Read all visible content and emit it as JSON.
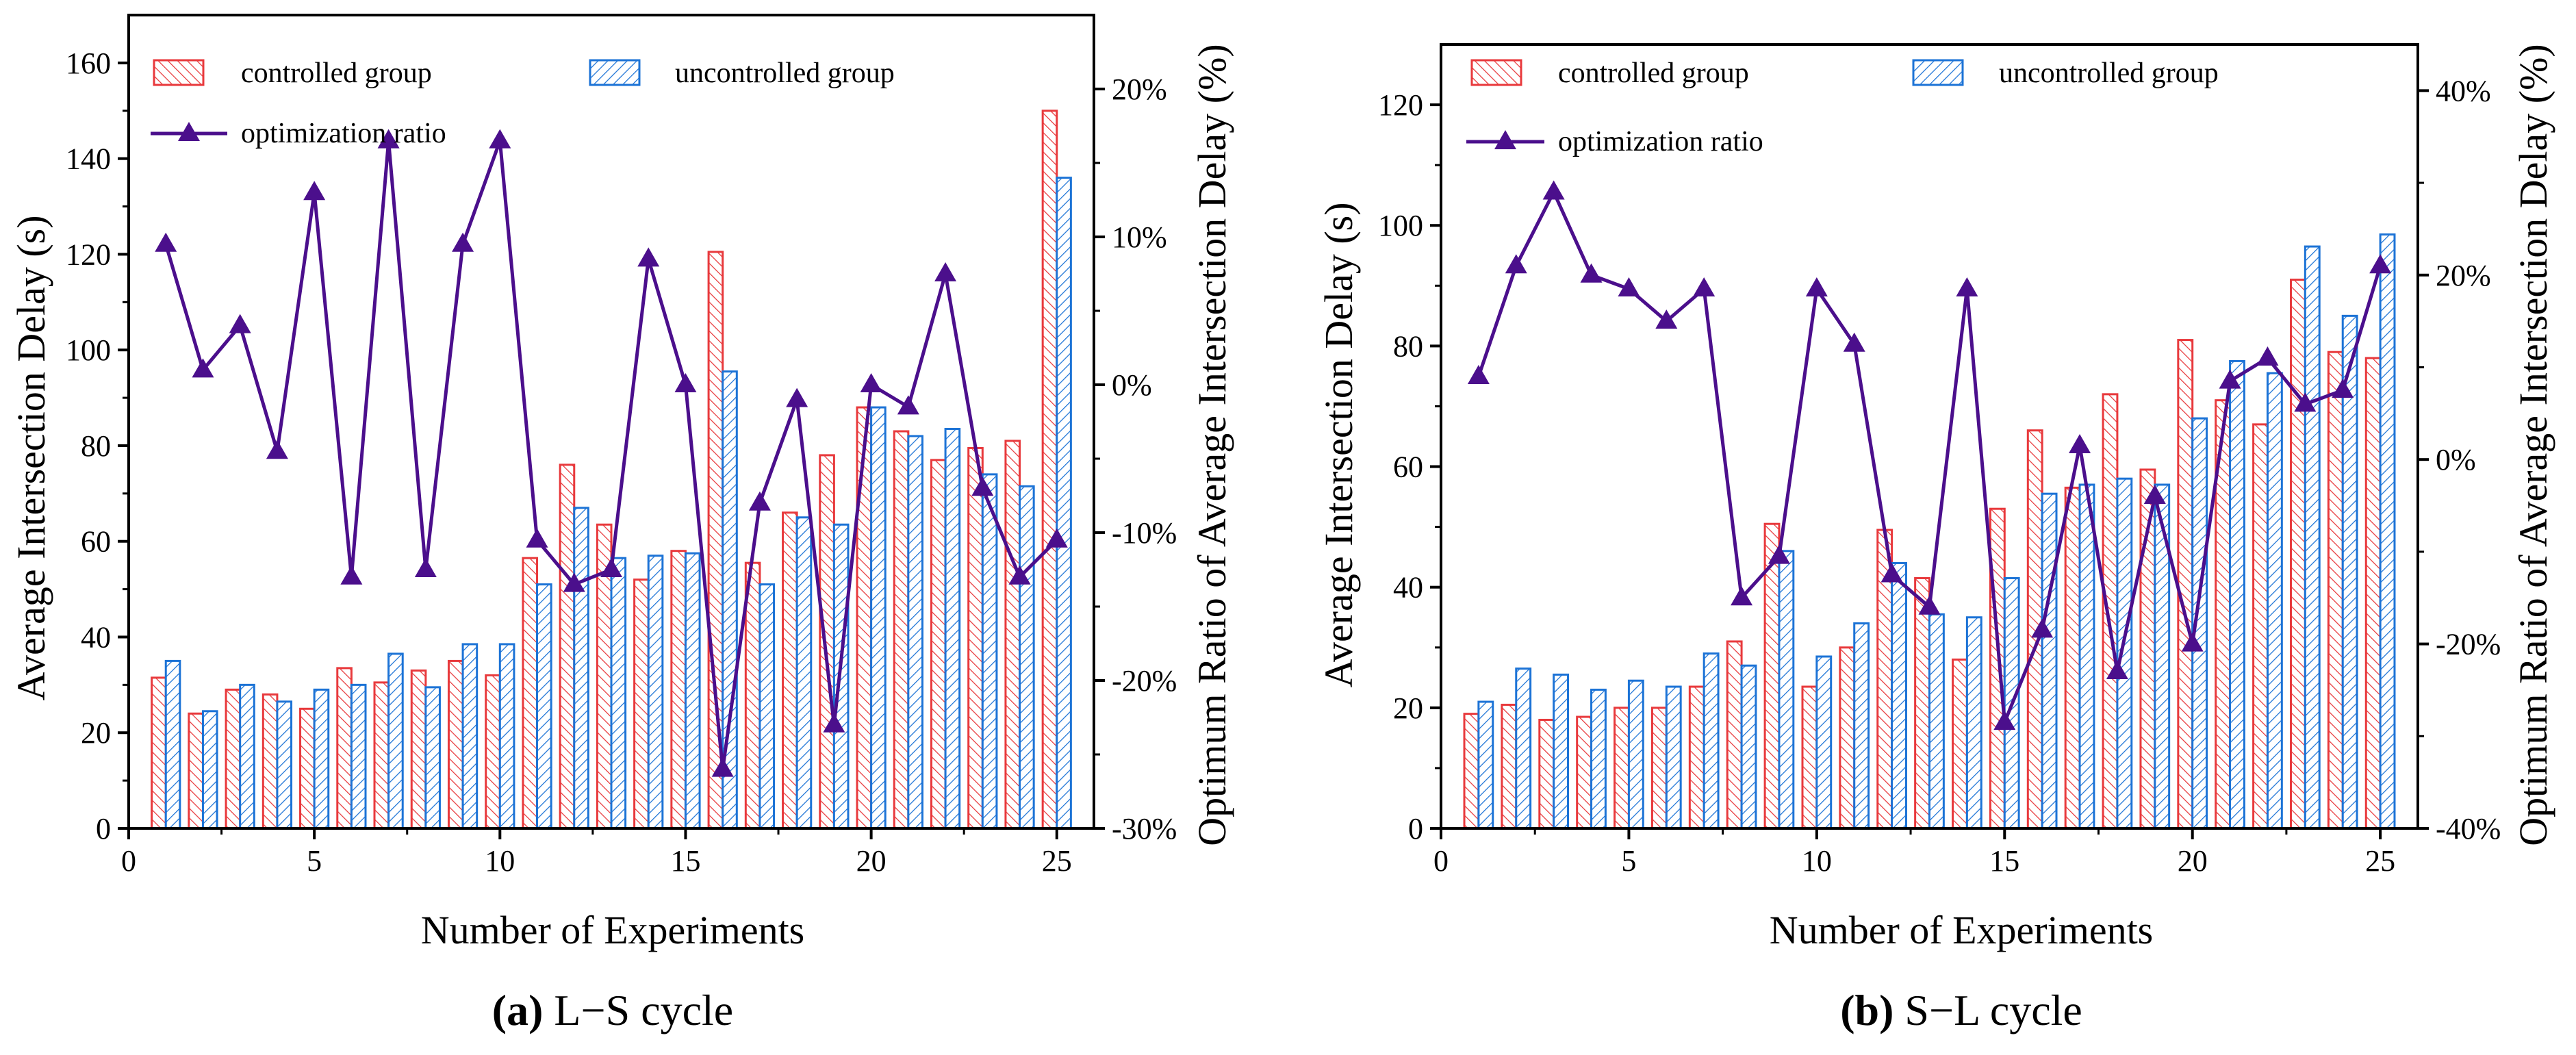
{
  "chart_data": [
    {
      "type": "bar",
      "panel": "a",
      "caption_letter": "(a)",
      "caption_text": " L−S cycle",
      "xlabel": "Number of Experiments",
      "ylabel": "Average Intersection Delay (s)",
      "y2label": "Optimum Ratio of Average Intersection Delay (%)",
      "xlim": [
        0,
        26
      ],
      "xticks": [
        0,
        5,
        10,
        15,
        20,
        25
      ],
      "xticklabels": [
        "0",
        "5",
        "10",
        "15",
        "20",
        "25"
      ],
      "ylim": [
        0,
        170
      ],
      "yticks": [
        0,
        20,
        40,
        60,
        80,
        100,
        120,
        140,
        160
      ],
      "yticklabels": [
        "0",
        "20",
        "40",
        "60",
        "80",
        "100",
        "120",
        "140",
        "160"
      ],
      "y2lim": [
        -30,
        25
      ],
      "y2ticks": [
        -30,
        -20,
        -10,
        0,
        10,
        20
      ],
      "y2ticklabels": [
        "-30%",
        "-20%",
        "-10%",
        "0%",
        "10%",
        "20%"
      ],
      "categories": [
        1,
        2,
        3,
        4,
        5,
        6,
        7,
        8,
        9,
        10,
        11,
        12,
        13,
        14,
        15,
        16,
        17,
        18,
        19,
        20,
        21,
        22,
        23,
        24,
        25
      ],
      "series": [
        {
          "name": "controlled group",
          "kind": "bar",
          "color": "#e8393c",
          "values": [
            31.5,
            24,
            29,
            28,
            25,
            33.5,
            30.5,
            33,
            35,
            32,
            56.5,
            76,
            63.5,
            52,
            58,
            120.5,
            55.5,
            66,
            78,
            88,
            83,
            77,
            79.5,
            81,
            150
          ]
        },
        {
          "name": "uncontrolled group",
          "kind": "bar",
          "color": "#1c73d6",
          "values": [
            35,
            24.5,
            30,
            26.5,
            29,
            30,
            36.5,
            29.5,
            38.5,
            38.5,
            51,
            67,
            56.5,
            57,
            57.5,
            95.5,
            51,
            65,
            63.5,
            88,
            82,
            83.5,
            74,
            71.5,
            136
          ]
        },
        {
          "name": "optimization ratio",
          "kind": "line",
          "color": "#4b0f8c",
          "values": [
            9.5,
            1.0,
            4.0,
            -4.5,
            13.0,
            -13.0,
            16.5,
            -12.5,
            9.5,
            16.5,
            -10.5,
            -13.5,
            -12.5,
            8.5,
            0.0,
            -26.0,
            -8.0,
            -1.0,
            -23.0,
            0.0,
            -1.5,
            7.5,
            -7.0,
            -13.0,
            -10.5
          ]
        }
      ]
    },
    {
      "type": "bar",
      "panel": "b",
      "caption_letter": "(b)",
      "caption_text": " S−L cycle",
      "xlabel": "Number of Experiments",
      "ylabel": "Average Intersection Delay (s)",
      "y2label": "Optimum Ratio of Average Intersection Delay (%)",
      "xlim": [
        0,
        26
      ],
      "xticks": [
        0,
        5,
        10,
        15,
        20,
        25
      ],
      "xticklabels": [
        "0",
        "5",
        "10",
        "15",
        "20",
        "25"
      ],
      "ylim": [
        0,
        130
      ],
      "yticks": [
        0,
        20,
        40,
        60,
        80,
        100,
        120
      ],
      "yticklabels": [
        "0",
        "20",
        "40",
        "60",
        "80",
        "100",
        "120"
      ],
      "y2lim": [
        -40,
        45
      ],
      "y2ticks": [
        -40,
        -20,
        0,
        20,
        40
      ],
      "y2ticklabels": [
        "-40%",
        "-20%",
        "0%",
        "20%",
        "40%"
      ],
      "categories": [
        1,
        2,
        3,
        4,
        5,
        6,
        7,
        8,
        9,
        10,
        11,
        12,
        13,
        14,
        15,
        16,
        17,
        18,
        19,
        20,
        21,
        22,
        23,
        24,
        25
      ],
      "series": [
        {
          "name": "controlled group",
          "kind": "bar",
          "color": "#e8393c",
          "values": [
            19,
            20.5,
            18,
            18.5,
            20,
            20,
            23.5,
            31,
            50.5,
            23.5,
            30,
            49.5,
            41.5,
            28,
            53,
            66,
            56.5,
            72,
            59.5,
            81,
            71,
            67,
            91,
            79,
            78
          ]
        },
        {
          "name": "uncontrolled group",
          "kind": "bar",
          "color": "#1c73d6",
          "values": [
            21,
            26.5,
            25.5,
            23,
            24.5,
            23.5,
            29,
            27,
            46,
            28.5,
            34,
            44,
            35.5,
            35,
            41.5,
            55.5,
            57,
            58,
            57,
            68,
            77.5,
            75.5,
            96.5,
            85,
            98.5
          ]
        },
        {
          "name": "optimization ratio",
          "kind": "line",
          "color": "#4b0f8c",
          "values": [
            9,
            21,
            29,
            20,
            18.5,
            15,
            18.5,
            -15,
            -10.5,
            18.5,
            12.5,
            -12.5,
            -16,
            18.5,
            -28.5,
            -18.5,
            1.5,
            -23,
            -4,
            -20,
            8.5,
            11,
            6,
            7.5,
            21
          ]
        }
      ]
    }
  ]
}
